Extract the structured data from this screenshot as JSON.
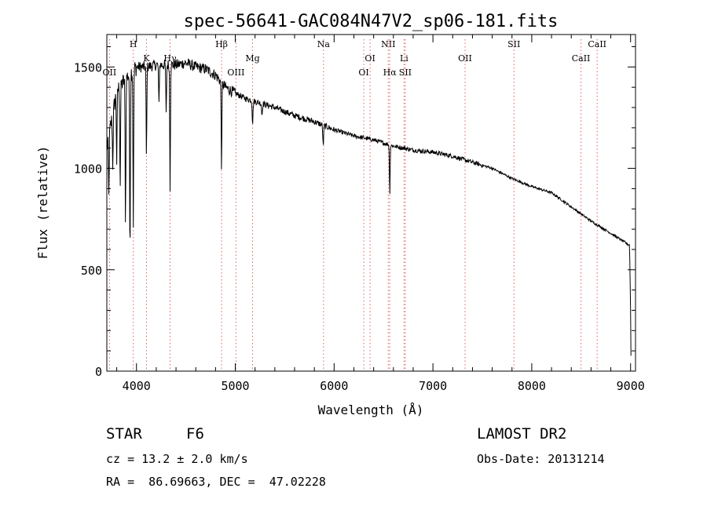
{
  "chart_data": {
    "type": "line",
    "title": "spec-56641-GAC084N47V2_sp06-181.fits",
    "xlabel": "Wavelength (Å)",
    "ylabel": "Flux (relative)",
    "xlim": [
      3700,
      9050
    ],
    "ylim": [
      0,
      1660
    ],
    "xticks": [
      4000,
      5000,
      6000,
      7000,
      8000,
      9000
    ],
    "yticks": [
      0,
      500,
      1000,
      1500
    ],
    "grid": false,
    "line_color": "#000000",
    "marker_color": "#e06060",
    "continuum": [
      [
        3700,
        1100
      ],
      [
        3800,
        1380
      ],
      [
        3900,
        1450
      ],
      [
        4000,
        1500
      ],
      [
        4100,
        1500
      ],
      [
        4200,
        1510
      ],
      [
        4300,
        1510
      ],
      [
        4400,
        1510
      ],
      [
        4500,
        1520
      ],
      [
        4600,
        1500
      ],
      [
        4700,
        1490
      ],
      [
        4800,
        1460
      ],
      [
        4900,
        1400
      ],
      [
        5000,
        1370
      ],
      [
        5100,
        1345
      ],
      [
        5200,
        1330
      ],
      [
        5400,
        1300
      ],
      [
        5600,
        1260
      ],
      [
        5800,
        1230
      ],
      [
        6000,
        1190
      ],
      [
        6200,
        1160
      ],
      [
        6400,
        1140
      ],
      [
        6600,
        1110
      ],
      [
        6800,
        1090
      ],
      [
        7000,
        1080
      ],
      [
        7200,
        1060
      ],
      [
        7400,
        1030
      ],
      [
        7600,
        1000
      ],
      [
        7800,
        950
      ],
      [
        8000,
        910
      ],
      [
        8200,
        880
      ],
      [
        8400,
        810
      ],
      [
        8600,
        740
      ],
      [
        8800,
        680
      ],
      [
        8990,
        620
      ],
      [
        9000,
        300
      ],
      [
        9005,
        20
      ]
    ],
    "absorption_features": [
      {
        "x": 3720,
        "depth": 300,
        "w": 5
      },
      {
        "x": 3760,
        "depth": 250,
        "w": 5
      },
      {
        "x": 3800,
        "depth": 350,
        "w": 5
      },
      {
        "x": 3835,
        "depth": 500,
        "w": 5
      },
      {
        "x": 3889,
        "depth": 700,
        "w": 5
      },
      {
        "x": 3934,
        "depth": 900,
        "w": 5
      },
      {
        "x": 3968,
        "depth": 750,
        "w": 5
      },
      {
        "x": 4101,
        "depth": 450,
        "w": 5
      },
      {
        "x": 4227,
        "depth": 200,
        "w": 5
      },
      {
        "x": 4300,
        "depth": 250,
        "w": 5
      },
      {
        "x": 4340,
        "depth": 600,
        "w": 5
      },
      {
        "x": 4861,
        "depth": 420,
        "w": 5
      },
      {
        "x": 5175,
        "depth": 110,
        "w": 6
      },
      {
        "x": 5270,
        "depth": 60,
        "w": 5
      },
      {
        "x": 5890,
        "depth": 100,
        "w": 6
      },
      {
        "x": 6563,
        "depth": 240,
        "w": 5
      }
    ],
    "line_markers": [
      {
        "label": "OII",
        "x": 3727,
        "row": 3
      },
      {
        "label": "H",
        "x": 3968,
        "row": 0
      },
      {
        "label": "K",
        "x": 4101,
        "row": 1
      },
      {
        "label": "Hγ",
        "x": 4340,
        "row": 1
      },
      {
        "label": "Hβ",
        "x": 4861,
        "row": 0
      },
      {
        "label": "OIII",
        "x": 5007,
        "row": 3
      },
      {
        "label": "Mg",
        "x": 5175,
        "row": 1
      },
      {
        "label": "Na",
        "x": 5893,
        "row": 0
      },
      {
        "label": "OI",
        "x": 6300,
        "row": 3
      },
      {
        "label": "OI",
        "x": 6364,
        "row": 1
      },
      {
        "label": "NII",
        "x": 6548,
        "row": 0
      },
      {
        "label": "Hα",
        "x": 6563,
        "row": 3
      },
      {
        "label": "Li",
        "x": 6708,
        "row": 1
      },
      {
        "label": "SII",
        "x": 6720,
        "row": 3
      },
      {
        "label": "OII",
        "x": 7325,
        "row": 1
      },
      {
        "label": "SII",
        "x": 7820,
        "row": 0
      },
      {
        "label": "CaII",
        "x": 8498,
        "row": 1
      },
      {
        "label": "CaII",
        "x": 8662,
        "row": 0
      }
    ]
  },
  "info": {
    "class_label": "STAR",
    "subclass": "F6",
    "survey": "LAMOST DR2",
    "redshift": "cz = 13.2 ± 2.0 km/s",
    "obs_date": "Obs-Date: 20131214",
    "coords": "RA =  86.69663, DEC =  47.02228"
  }
}
